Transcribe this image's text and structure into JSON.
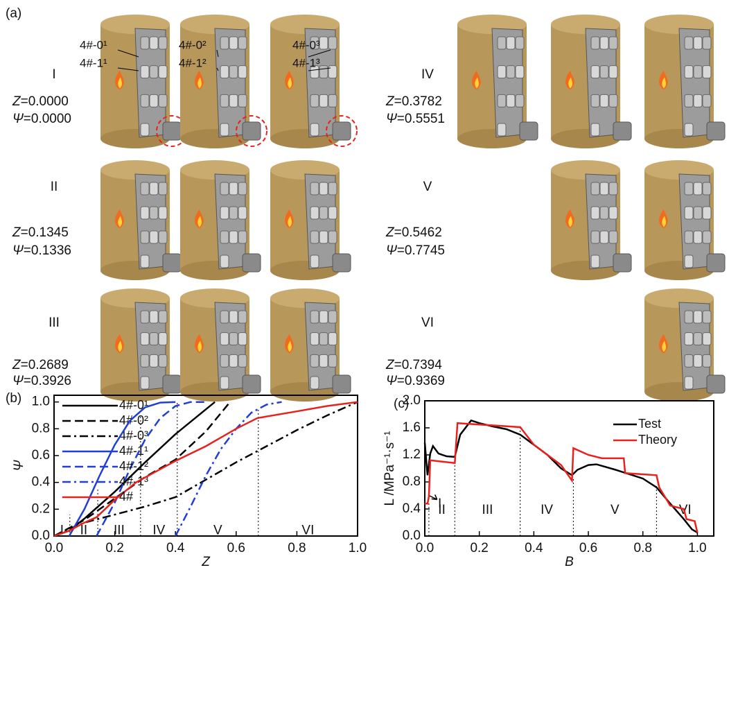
{
  "figure_a": {
    "panel_label": "(a)",
    "pellet_labels": [
      [
        "4#-0¹",
        "4#-1¹"
      ],
      [
        "4#-0²",
        "4#-1²"
      ],
      [
        "4#-0³",
        "4#-1³"
      ]
    ],
    "stages": [
      {
        "numeral": "I",
        "z_symbol": "Z",
        "z_text": "=0.0000",
        "psi_symbol": "Ψ",
        "psi_text": "=0.0000"
      },
      {
        "numeral": "II",
        "z_symbol": "Z",
        "z_text": "=0.1345",
        "psi_symbol": "Ψ",
        "psi_text": "=0.1336"
      },
      {
        "numeral": "III",
        "z_symbol": "Z",
        "z_text": "=0.2689",
        "psi_symbol": "Ψ",
        "psi_text": "=0.3926"
      },
      {
        "numeral": "IV",
        "z_symbol": "Z",
        "z_text": "=0.3782",
        "psi_symbol": "Ψ",
        "psi_text": "=0.5551"
      },
      {
        "numeral": "V",
        "z_symbol": "Z",
        "z_text": "=0.5462",
        "psi_symbol": "Ψ",
        "psi_text": "=0.7745"
      },
      {
        "numeral": "VI",
        "z_symbol": "Z",
        "z_text": "=0.7394",
        "psi_symbol": "Ψ",
        "psi_text": "=0.9369"
      }
    ]
  },
  "chart_data": [
    {
      "type": "line",
      "panel_label": "(b)",
      "xlabel": "Z",
      "ylabel": "Ψ",
      "xlim": [
        0,
        1.0
      ],
      "ylim": [
        0,
        1.05
      ],
      "xticks": [
        {
          "value": 0,
          "label": "0.0"
        },
        {
          "value": 0.2,
          "label": "0.2"
        },
        {
          "value": 0.4,
          "label": "0.4"
        },
        {
          "value": 0.6,
          "label": "0.6"
        },
        {
          "value": 0.8,
          "label": "0.8"
        },
        {
          "value": 1.0,
          "label": "1.0"
        }
      ],
      "yticks": [
        {
          "value": 0,
          "label": "0.0"
        },
        {
          "value": 0.2,
          "label": "0.2"
        },
        {
          "value": 0.4,
          "label": "0.4"
        },
        {
          "value": 0.6,
          "label": "0.6"
        },
        {
          "value": 0.8,
          "label": "0.8"
        },
        {
          "value": 1.0,
          "label": "1.0"
        }
      ],
      "legend": "upper left",
      "series": [
        {
          "name": "4#-0¹",
          "color": "#000000",
          "dash": "solid",
          "x": [
            0,
            0.05,
            0.1,
            0.2,
            0.3,
            0.4,
            0.53
          ],
          "values": [
            0,
            0.04,
            0.13,
            0.33,
            0.55,
            0.76,
            1.0
          ]
        },
        {
          "name": "4#-0²",
          "color": "#000000",
          "dash": "dash",
          "x": [
            0,
            0.1,
            0.2,
            0.3,
            0.4,
            0.5,
            0.58
          ],
          "values": [
            0,
            0.12,
            0.28,
            0.44,
            0.57,
            0.78,
            1.0
          ]
        },
        {
          "name": "4#-0³",
          "color": "#000000",
          "dash": "dashdot",
          "x": [
            0,
            0.1,
            0.2,
            0.3,
            0.4,
            0.5,
            0.6,
            0.7,
            0.8,
            0.9,
            1.0
          ],
          "values": [
            0,
            0.1,
            0.16,
            0.22,
            0.29,
            0.42,
            0.55,
            0.67,
            0.79,
            0.9,
            1.0
          ]
        },
        {
          "name": "4#-1¹",
          "color": "#1f3fd6",
          "dash": "solid",
          "x": [
            0.05,
            0.1,
            0.15,
            0.2,
            0.25,
            0.3,
            0.35,
            0.4
          ],
          "values": [
            0,
            0.2,
            0.45,
            0.68,
            0.86,
            0.96,
            0.995,
            1.0
          ]
        },
        {
          "name": "4#-1²",
          "color": "#1f3fd6",
          "dash": "dash",
          "x": [
            0.14,
            0.2,
            0.25,
            0.3,
            0.35,
            0.4,
            0.45,
            0.5
          ],
          "values": [
            0,
            0.25,
            0.5,
            0.72,
            0.88,
            0.97,
            1.0,
            1.0
          ]
        },
        {
          "name": "4#-1³",
          "color": "#1f3fd6",
          "dash": "dashdot",
          "x": [
            0.4,
            0.45,
            0.5,
            0.55,
            0.6,
            0.65,
            0.7,
            0.75
          ],
          "values": [
            0,
            0.22,
            0.45,
            0.65,
            0.8,
            0.92,
            0.98,
            1.0
          ]
        },
        {
          "name": "4#",
          "color": "#e8211c",
          "dash": "solid",
          "x": [
            0,
            0.05,
            0.1,
            0.14,
            0.2,
            0.27,
            0.4,
            0.5,
            0.6,
            0.67,
            0.8,
            0.9,
            1.0
          ],
          "values": [
            0,
            0.04,
            0.1,
            0.14,
            0.27,
            0.4,
            0.56,
            0.67,
            0.8,
            0.88,
            0.93,
            0.97,
            1.0
          ]
        }
      ],
      "dividers": [
        {
          "x": 0.052,
          "top": 0.16
        },
        {
          "x": 0.144,
          "top": 0.35
        },
        {
          "x": 0.285,
          "top": 0.89
        },
        {
          "x": 0.406,
          "top": 1.0
        },
        {
          "x": 0.673,
          "top": 0.95
        }
      ],
      "regions": [
        "I",
        "II",
        "III",
        "IV",
        "V",
        "VI"
      ]
    },
    {
      "type": "line",
      "panel_label": "(c)",
      "xlabel": "B",
      "ylabel": "L /MPa⁻¹·s⁻¹",
      "xlim": [
        0,
        1.06
      ],
      "ylim": [
        0,
        2.0
      ],
      "xticks": [
        {
          "value": 0,
          "label": "0.0"
        },
        {
          "value": 0.2,
          "label": "0.2"
        },
        {
          "value": 0.4,
          "label": "0.4"
        },
        {
          "value": 0.6,
          "label": "0.6"
        },
        {
          "value": 0.8,
          "label": "0.8"
        },
        {
          "value": 1.0,
          "label": "1.0"
        }
      ],
      "yticks": [
        {
          "value": 0,
          "label": "0.0"
        },
        {
          "value": 0.4,
          "label": "0.4"
        },
        {
          "value": 0.8,
          "label": "0.8"
        },
        {
          "value": 1.2,
          "label": "1.2"
        },
        {
          "value": 1.6,
          "label": "1.6"
        },
        {
          "value": 2.0,
          "label": "2.0"
        }
      ],
      "legend": "upper right",
      "series": [
        {
          "name": "Test",
          "color": "#000000",
          "dash": "solid",
          "x": [
            0,
            0.01,
            0.02,
            0.03,
            0.05,
            0.08,
            0.11,
            0.13,
            0.17,
            0.2,
            0.25,
            0.3,
            0.35,
            0.4,
            0.45,
            0.5,
            0.54,
            0.56,
            0.6,
            0.63,
            0.7,
            0.8,
            0.85,
            0.9,
            0.95,
            0.98,
            1.0
          ],
          "values": [
            1.38,
            0.9,
            1.22,
            1.33,
            1.22,
            1.18,
            1.17,
            1.5,
            1.71,
            1.67,
            1.62,
            1.58,
            1.5,
            1.35,
            1.2,
            1.0,
            0.9,
            0.98,
            1.05,
            1.06,
            0.98,
            0.85,
            0.72,
            0.48,
            0.25,
            0.1,
            0.05
          ]
        },
        {
          "name": "Theory",
          "color": "#e8211c",
          "dash": "solid",
          "x": [
            0,
            0.01,
            0.015,
            0.02,
            0.11,
            0.12,
            0.35,
            0.4,
            0.45,
            0.5,
            0.54,
            0.545,
            0.6,
            0.65,
            0.73,
            0.735,
            0.85,
            0.86,
            0.9,
            0.95,
            0.96,
            0.99,
            1.0
          ],
          "values": [
            0.48,
            0.48,
            0.58,
            1.12,
            1.08,
            1.67,
            1.61,
            1.35,
            1.2,
            1.05,
            0.82,
            1.3,
            1.2,
            1.15,
            1.15,
            0.93,
            0.9,
            0.72,
            0.45,
            0.4,
            0.25,
            0.22,
            0.05
          ]
        }
      ],
      "dividers": [
        {
          "x": 0.015,
          "top": 0.5
        },
        {
          "x": 0.11,
          "top": 1.18
        },
        {
          "x": 0.35,
          "top": 1.6
        },
        {
          "x": 0.545,
          "top": 0.85
        },
        {
          "x": 0.85,
          "top": 0.75
        }
      ],
      "regions": [
        "I",
        "II",
        "III",
        "IV",
        "V",
        "VI"
      ]
    }
  ]
}
